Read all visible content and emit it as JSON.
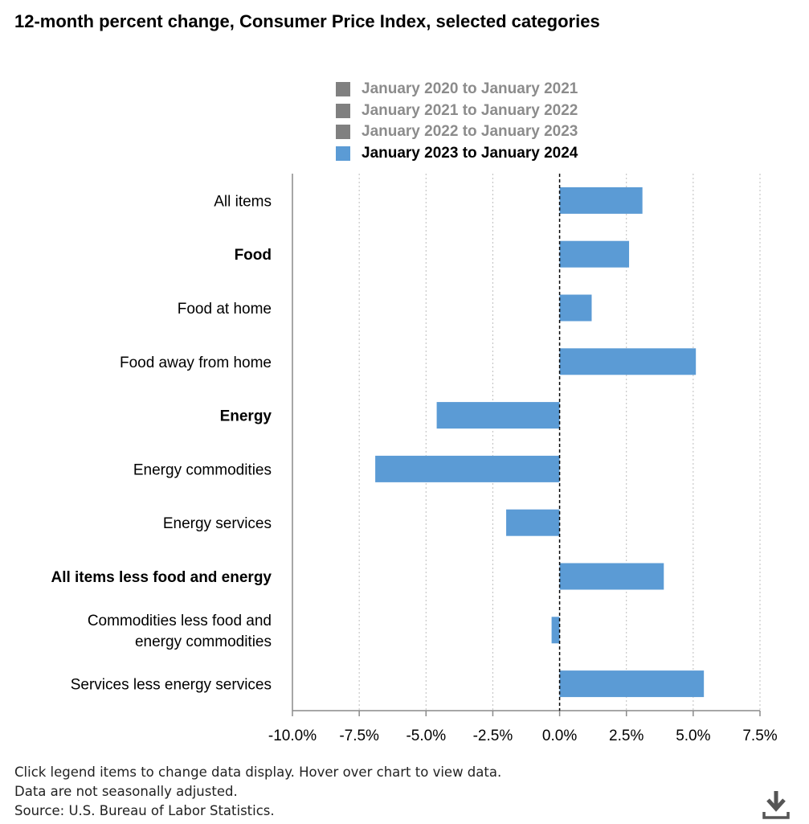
{
  "title": "12-month percent change, Consumer Price Index, selected categories",
  "legend": [
    {
      "label": "January 2020 to January 2021",
      "color": "#808080",
      "active": false
    },
    {
      "label": "January 2021 to January 2022",
      "color": "#808080",
      "active": false
    },
    {
      "label": "January 2022 to January 2023",
      "color": "#808080",
      "active": false
    },
    {
      "label": "January 2023 to January 2024",
      "color": "#5b9bd5",
      "active": true
    }
  ],
  "chart_data": {
    "type": "bar",
    "orientation": "horizontal",
    "categories": [
      {
        "label": "All items",
        "bold": false
      },
      {
        "label": "Food",
        "bold": true
      },
      {
        "label": "Food at home",
        "bold": false
      },
      {
        "label": "Food away from home",
        "bold": false
      },
      {
        "label": "Energy",
        "bold": true
      },
      {
        "label": "Energy commodities",
        "bold": false
      },
      {
        "label": "Energy services",
        "bold": false
      },
      {
        "label": "All items less food and energy",
        "bold": true
      },
      {
        "label": "Commodities less food and energy commodities",
        "bold": false
      },
      {
        "label": "Services less energy services",
        "bold": false
      }
    ],
    "series": [
      {
        "name": "January 2023 to January 2024",
        "color": "#5b9bd5",
        "values": [
          3.1,
          2.6,
          1.2,
          5.1,
          -4.6,
          -6.9,
          -2.0,
          3.9,
          -0.3,
          5.4
        ]
      }
    ],
    "xlim": [
      -10,
      7.5
    ],
    "xticks": [
      -10,
      -7.5,
      -5,
      -2.5,
      0,
      2.5,
      5,
      7.5
    ],
    "xtick_labels": [
      "-10.0%",
      "-7.5%",
      "-5.0%",
      "-2.5%",
      "0.0%",
      "2.5%",
      "5.0%",
      "7.5%"
    ],
    "grid": "vertical dotted",
    "zero_line": "dashed"
  },
  "footnotes": [
    "Click legend items to change data display. Hover over chart to view data.",
    "Data are not seasonally adjusted.",
    "Source: U.S. Bureau of Labor Statistics."
  ],
  "icons": {
    "download": "download-icon"
  }
}
